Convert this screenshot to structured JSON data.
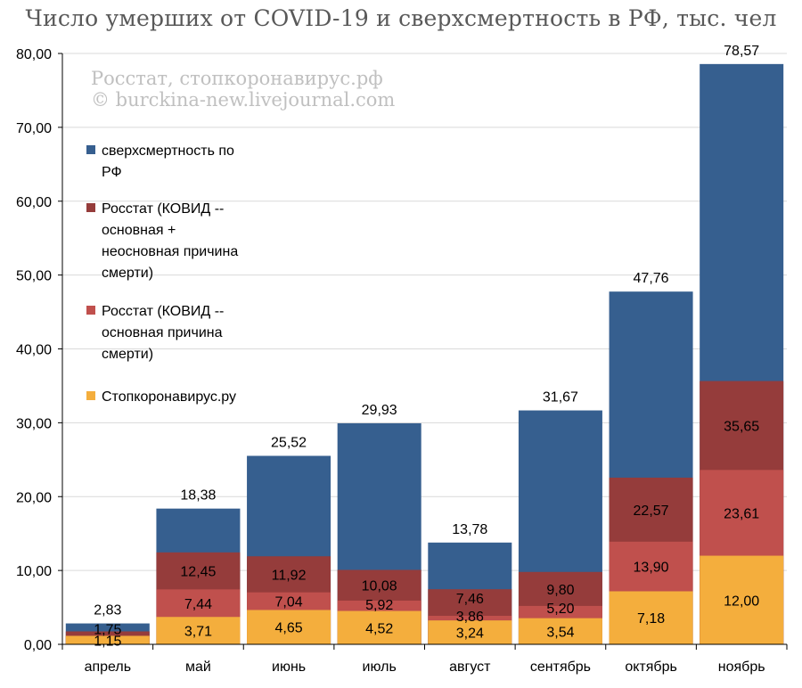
{
  "chart_data": {
    "type": "bar",
    "stacked": false,
    "overlapping": true,
    "title": "Число умерших от COVID-19 и сверхсмертность в РФ, тыс. чел",
    "watermark": [
      "Росстат, стопкоронавирус.рф",
      "© burckina-new.livejournal.com"
    ],
    "categories": [
      "апрель",
      "май",
      "июнь",
      "июль",
      "август",
      "сентябрь",
      "октябрь",
      "ноябрь"
    ],
    "ylim": [
      0,
      80
    ],
    "yticks": [
      "0,00",
      "10,00",
      "20,00",
      "30,00",
      "40,00",
      "50,00",
      "60,00",
      "70,00",
      "80,00"
    ],
    "grid": true,
    "legend_position": "left",
    "series": [
      {
        "name": "сверхсмертность по РФ",
        "legend_lines": [
          "сверхсмертность по",
          "РФ"
        ],
        "color": "#365f8f",
        "values": [
          2.83,
          18.38,
          25.52,
          29.93,
          13.78,
          31.67,
          47.76,
          78.57
        ],
        "labels": [
          "2,83",
          "18,38",
          "25,52",
          "29,93",
          "13,78",
          "31,67",
          "47,76",
          "78,57"
        ]
      },
      {
        "name": "Росстат (КОВИД -- основная + неосновная причина смерти)",
        "legend_lines": [
          "Росстат (КОВИД --",
          "основная +",
          "неосновная причина",
          "смерти)"
        ],
        "color": "#953c3b",
        "values": [
          1.75,
          12.45,
          11.92,
          10.08,
          7.46,
          9.8,
          22.57,
          35.65
        ],
        "labels": [
          "1,75",
          "12,45",
          "11,92",
          "10,08",
          "7,46",
          "9,80",
          "22,57",
          "35,65"
        ]
      },
      {
        "name": "Росстат (КОВИД -- основная причина смерти)",
        "legend_lines": [
          "Росстат (КОВИД --",
          "основная причина",
          "смерти)"
        ],
        "color": "#c0504d",
        "values": [
          1.15,
          7.44,
          7.04,
          5.92,
          3.86,
          5.2,
          13.9,
          23.61
        ],
        "labels": [
          "1,15",
          "7,44",
          "7,04",
          "5,92",
          "3,86",
          "5,20",
          "13,90",
          "23,61"
        ]
      },
      {
        "name": "Стопкоронавирус.ру",
        "legend_lines": [
          "Стопкоронавирус.ру"
        ],
        "color": "#f4ae3d",
        "values": [
          1.15,
          3.71,
          4.65,
          4.52,
          3.24,
          3.54,
          7.18,
          12.0
        ],
        "labels": [
          "",
          "3,71",
          "4,65",
          "4,52",
          "3,24",
          "3,54",
          "7,18",
          "12,00"
        ]
      }
    ]
  }
}
